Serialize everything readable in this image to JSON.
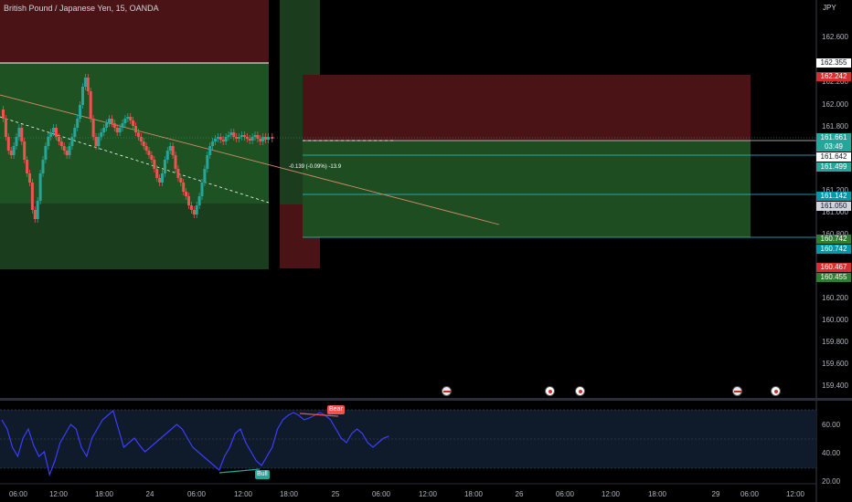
{
  "chart": {
    "title": "British Pound / Japanese Yen, 15, OANDA",
    "currency": "JPY",
    "measure_label": "-0.139 (-0.09%) -13.9"
  },
  "price_axis": {
    "ticks": [
      "162.600",
      "162.400",
      "162.200",
      "162.000",
      "161.800",
      "161.200",
      "161.000",
      "160.800",
      "160.200",
      "160.000",
      "159.800",
      "159.600",
      "159.400"
    ]
  },
  "price_labels": [
    {
      "text": "162.355",
      "bg": "#ffffff",
      "fg": "#131722"
    },
    {
      "text": "162.242",
      "bg": "#d32f2f",
      "fg": "#ffffff"
    },
    {
      "text": "161.661",
      "bg": "#26a69a",
      "fg": "#ffffff"
    },
    {
      "text": "03:49",
      "bg": "#26a69a",
      "fg": "#ffffff"
    },
    {
      "text": "161.642",
      "bg": "#ffffff",
      "fg": "#131722"
    },
    {
      "text": "161.499",
      "bg": "#26a69a",
      "fg": "#ffffff"
    },
    {
      "text": "161.142",
      "bg": "#0097a7",
      "fg": "#ffffff"
    },
    {
      "text": "161.050",
      "bg": "#d1d4dc",
      "fg": "#131722"
    },
    {
      "text": "160.742",
      "bg": "#2e7d32",
      "fg": "#ffffff"
    },
    {
      "text": "160.742",
      "bg": "#0097a7",
      "fg": "#ffffff"
    },
    {
      "text": "160.467",
      "bg": "#d32f2f",
      "fg": "#ffffff"
    },
    {
      "text": "160.455",
      "bg": "#2e7d32",
      "fg": "#ffffff"
    }
  ],
  "time_axis": {
    "ticks": [
      "06:00",
      "12:00",
      "18:00",
      "24",
      "06:00",
      "12:00",
      "18:00",
      "25",
      "06:00",
      "12:00",
      "18:00",
      "26",
      "06:00",
      "12:00",
      "18:00",
      "29",
      "06:00",
      "12:00"
    ]
  },
  "rsi": {
    "ticks": [
      "60.00",
      "40.00",
      "20.00"
    ],
    "bear_label": "Bear",
    "bull_label": "Bull"
  },
  "colors": {
    "red_zone": "#4a1416",
    "green_zone": "#1e4d21",
    "up": "#26a69a",
    "down": "#ef5350",
    "rsi_line": "#3d3dff",
    "cyan_line": "#26c6da"
  },
  "events": [
    "uk-flag-icon",
    "event-icon",
    "event-icon",
    "uk-flag-icon",
    "event-icon"
  ]
}
